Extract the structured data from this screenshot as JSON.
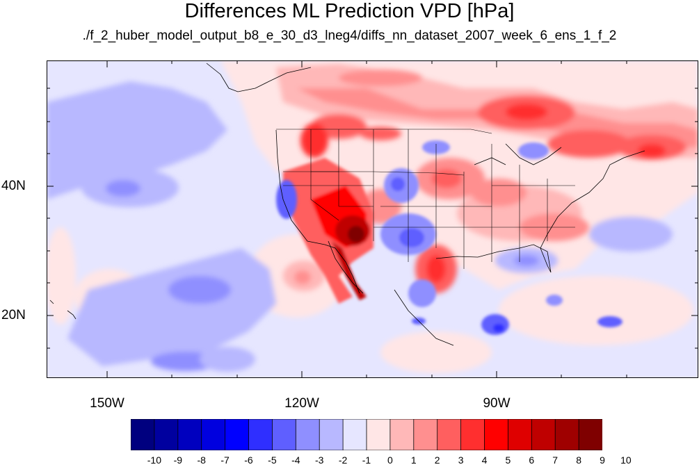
{
  "title": "Differences ML Prediction VPD [hPa]",
  "subtitle": "./f_2_huber_model_output_b8_e_30_d3_lneg4/diffs_nn_dataset_2007_week_6_ens_1_f_2",
  "map": {
    "projection": "cylindrical-equidistant",
    "lon_range": [
      -160,
      -60
    ],
    "lat_range": [
      11,
      60
    ],
    "x_ticks": [
      "150W",
      "120W",
      "90W"
    ],
    "y_ticks": [
      "40N",
      "20N"
    ],
    "features": [
      "coastlines",
      "us-state-boundaries",
      "country-boundaries"
    ]
  },
  "colorbar": {
    "labels": [
      "-10",
      "-9",
      "-8",
      "-7",
      "-6",
      "-5",
      "-4",
      "-3",
      "-2",
      "-1",
      "0",
      "1",
      "2",
      "3",
      "4",
      "5",
      "6",
      "7",
      "8",
      "9",
      "10"
    ],
    "colors": [
      "#00007f",
      "#00009f",
      "#0000bf",
      "#0000df",
      "#0000ff",
      "#2f2fff",
      "#5f5fff",
      "#8f8fff",
      "#b8b8ff",
      "#e6e6ff",
      "#ffe6e6",
      "#ffb8b8",
      "#ff8f8f",
      "#ff5f5f",
      "#ff2f2f",
      "#ff0000",
      "#df0000",
      "#bf0000",
      "#9f0000",
      "#7f0000"
    ]
  }
}
